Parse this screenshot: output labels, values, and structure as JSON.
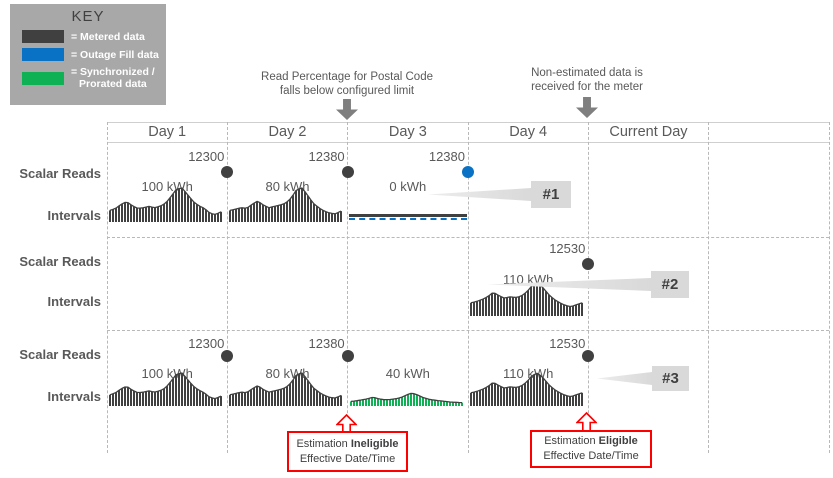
{
  "key": {
    "title": "KEY",
    "items": [
      {
        "name": "metered",
        "label": "= Metered data",
        "color": "#404040"
      },
      {
        "name": "outage",
        "label": "= Outage Fill data",
        "color": "#0a72c4"
      },
      {
        "name": "prorated",
        "label": "= Synchronized /\nProrated data",
        "color": "#0fb155"
      }
    ]
  },
  "annotations": {
    "postal_code": {
      "line1": "Read Percentage for Postal Code",
      "line2": "falls below configured limit"
    },
    "non_estimated": {
      "line1": "Non-estimated data is",
      "line2": "received for the meter"
    }
  },
  "header": {
    "columns": [
      "Day 1",
      "Day 2",
      "Day 3",
      "Day 4",
      "Current Day",
      ""
    ]
  },
  "row_labels": {
    "scalar": "Scalar Reads",
    "intervals": "Intervals"
  },
  "rows": [
    {
      "badge": "#1",
      "scalars": [
        {
          "boundary": 1,
          "value": "12300",
          "kind": "metered"
        },
        {
          "boundary": 2,
          "value": "12380",
          "kind": "metered"
        },
        {
          "boundary": 3,
          "value": "12380",
          "kind": "outage"
        }
      ],
      "segments": [
        {
          "day": 0,
          "type": "metered",
          "label": "100 kWh",
          "profile": "p100"
        },
        {
          "day": 1,
          "type": "metered",
          "label": "80 kWh",
          "profile": "p80"
        },
        {
          "day": 2,
          "type": "outage",
          "label": "0 kWh"
        }
      ]
    },
    {
      "badge": "#2",
      "scalars": [
        {
          "boundary": 4,
          "value": "12530",
          "kind": "metered"
        }
      ],
      "segments": [
        {
          "day": 3,
          "type": "metered",
          "label": "110 kWh",
          "profile": "p110"
        }
      ]
    },
    {
      "badge": "#3",
      "scalars": [
        {
          "boundary": 1,
          "value": "12300",
          "kind": "metered"
        },
        {
          "boundary": 2,
          "value": "12380",
          "kind": "metered"
        },
        {
          "boundary": 4,
          "value": "12530",
          "kind": "metered"
        }
      ],
      "segments": [
        {
          "day": 0,
          "type": "metered",
          "label": "100 kWh",
          "profile": "p100"
        },
        {
          "day": 1,
          "type": "metered",
          "label": "80 kWh",
          "profile": "p80"
        },
        {
          "day": 2,
          "type": "prorated",
          "label": "40 kWh",
          "profile": "p40"
        },
        {
          "day": 3,
          "type": "metered",
          "label": "110 kWh",
          "profile": "p110"
        }
      ]
    }
  ],
  "profiles": {
    "p100": [
      0.34,
      0.4,
      0.52,
      0.6,
      0.48,
      0.4,
      0.42,
      0.46,
      0.42,
      0.46,
      0.55,
      0.75,
      0.97,
      1.0,
      0.8,
      0.6,
      0.48,
      0.4,
      0.26,
      0.22,
      0.3
    ],
    "p80": [
      0.34,
      0.38,
      0.42,
      0.4,
      0.52,
      0.62,
      0.5,
      0.42,
      0.46,
      0.5,
      0.55,
      0.7,
      0.95,
      1.0,
      0.78,
      0.55,
      0.42,
      0.32,
      0.26,
      0.24,
      0.32
    ],
    "p110": [
      0.4,
      0.44,
      0.5,
      0.58,
      0.72,
      0.62,
      0.54,
      0.58,
      0.56,
      0.6,
      0.72,
      0.92,
      1.0,
      0.85,
      0.65,
      0.5,
      0.4,
      0.32,
      0.28,
      0.34,
      0.4
    ],
    "p40": [
      0.35,
      0.4,
      0.48,
      0.55,
      0.68,
      0.55,
      0.48,
      0.5,
      0.55,
      0.65,
      0.85,
      1.0,
      0.85,
      0.65,
      0.52,
      0.45,
      0.4,
      0.35,
      0.3,
      0.28,
      0.26
    ]
  },
  "footers": {
    "ineligible": {
      "prefix": "Estimation ",
      "bold": "Ineligible",
      "line2": "Effective Date/Time"
    },
    "eligible": {
      "prefix": "Estimation ",
      "bold": "Eligible",
      "line2": "Effective Date/Time"
    }
  },
  "colors": {
    "metered": "#404040",
    "outage": "#0a72c4",
    "prorated": "#0fb155",
    "accent_red": "#ff0000",
    "text_gray": "#595959",
    "badge_bg": "#d9d9d9",
    "key_bg": "#a8a8a8",
    "dash": "#b8b8b8"
  }
}
